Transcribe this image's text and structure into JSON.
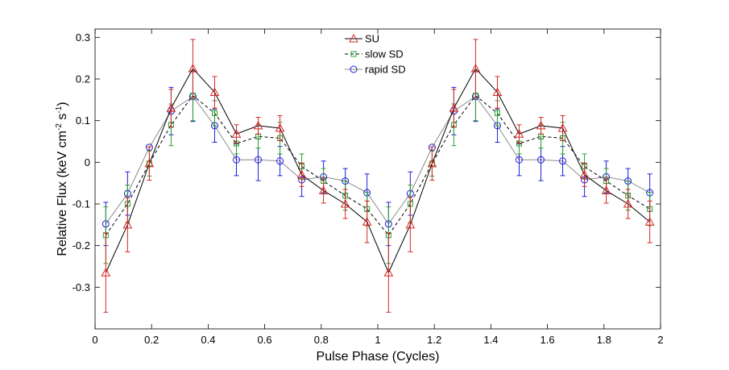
{
  "chart_data": {
    "type": "line",
    "title": "",
    "xlabel": "Pulse Phase (Cycles)",
    "ylabel_parts": [
      "Relative Flux (keV cm",
      "-2",
      " s",
      "-1",
      ")"
    ],
    "xlim": [
      0,
      2
    ],
    "ylim": [
      -0.4,
      0.32
    ],
    "xticks": [
      0,
      0.2,
      0.4,
      0.6,
      0.8,
      1,
      1.2,
      1.4,
      1.6,
      1.8,
      2
    ],
    "xtick_labels": [
      "0",
      "0.2",
      "0.4",
      "0.6",
      "0.8",
      "1",
      "1.2",
      "1.4",
      "1.6",
      "1.8",
      "2"
    ],
    "yticks": [
      -0.3,
      -0.2,
      -0.1,
      0,
      0.1,
      0.2,
      0.3
    ],
    "ytick_labels": [
      "-0.3",
      "-0.2",
      "-0.1",
      "0",
      "0.1",
      "0.2",
      "0.3"
    ],
    "grid": false,
    "legend_position": "top-center",
    "x": [
      0.038,
      0.115,
      0.192,
      0.269,
      0.346,
      0.423,
      0.5,
      0.577,
      0.654,
      0.731,
      0.808,
      0.885,
      0.962,
      1.038,
      1.115,
      1.192,
      1.269,
      1.346,
      1.423,
      1.5,
      1.577,
      1.654,
      1.731,
      1.808,
      1.885,
      1.962
    ],
    "series": [
      {
        "name": "SU",
        "color": "#d62728",
        "line_color": "#000000",
        "line_style": "solid",
        "marker": "triangle",
        "values": [
          -0.265,
          -0.15,
          -0.003,
          0.13,
          0.225,
          0.168,
          0.068,
          0.088,
          0.082,
          -0.03,
          -0.068,
          -0.1,
          -0.143,
          -0.265,
          -0.15,
          -0.003,
          0.13,
          0.225,
          0.168,
          0.068,
          0.088,
          0.082,
          -0.03,
          -0.068,
          -0.1,
          -0.143
        ],
        "errors": [
          0.095,
          0.065,
          0.04,
          0.045,
          0.07,
          0.038,
          0.022,
          0.02,
          0.03,
          0.028,
          0.03,
          0.035,
          0.05,
          0.095,
          0.065,
          0.04,
          0.045,
          0.07,
          0.038,
          0.022,
          0.02,
          0.03,
          0.028,
          0.03,
          0.035,
          0.05
        ]
      },
      {
        "name": "slow SD",
        "color": "#2ca02c",
        "line_color": "#000000",
        "line_style": "dashed",
        "marker": "square",
        "values": [
          -0.175,
          -0.1,
          -0.003,
          0.09,
          0.16,
          0.118,
          0.045,
          0.062,
          0.058,
          -0.01,
          -0.045,
          -0.08,
          -0.112,
          -0.175,
          -0.1,
          -0.003,
          0.09,
          0.16,
          0.118,
          0.045,
          0.062,
          0.058,
          -0.01,
          -0.045,
          -0.08,
          -0.112
        ],
        "errors": [
          0.068,
          0.045,
          0.03,
          0.05,
          0.06,
          0.03,
          0.025,
          0.028,
          0.038,
          0.03,
          0.03,
          0.035,
          0.04,
          0.068,
          0.045,
          0.03,
          0.05,
          0.06,
          0.03,
          0.025,
          0.028,
          0.038,
          0.03,
          0.03,
          0.035,
          0.04
        ]
      },
      {
        "name": "rapid SD",
        "color": "#1f1fdd",
        "line_color": "#8c8c8c",
        "line_style": "solid",
        "marker": "circle",
        "values": [
          -0.148,
          -0.075,
          0.036,
          0.123,
          0.158,
          0.088,
          0.006,
          0.006,
          0.003,
          -0.042,
          -0.035,
          -0.045,
          -0.073,
          -0.148,
          -0.075,
          0.036,
          0.123,
          0.158,
          0.088,
          0.006,
          0.006,
          0.003,
          -0.042,
          -0.035,
          -0.045,
          -0.073
        ],
        "errors": [
          0.052,
          0.052,
          0.0,
          0.057,
          0.06,
          0.04,
          0.038,
          0.05,
          0.035,
          0.04,
          0.038,
          0.03,
          0.045,
          0.052,
          0.052,
          0.0,
          0.057,
          0.06,
          0.04,
          0.038,
          0.05,
          0.035,
          0.04,
          0.038,
          0.03,
          0.045
        ]
      }
    ]
  }
}
